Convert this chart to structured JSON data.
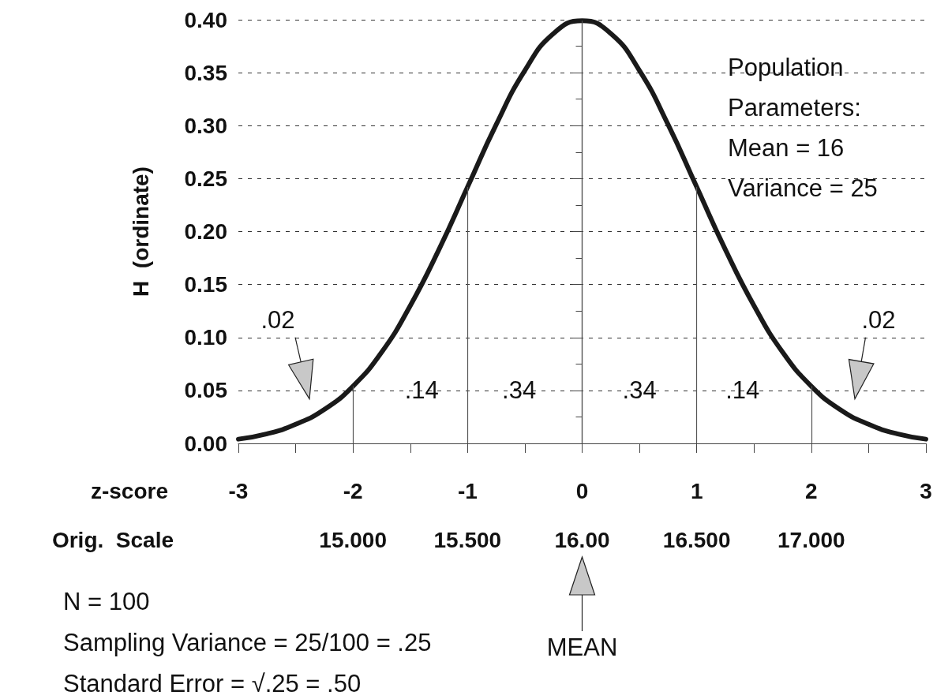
{
  "chart_data": {
    "type": "line",
    "xlabel": "z-score",
    "ylabel": "H  (ordinate)",
    "x2label": "Orig.  Scale",
    "x": [
      -3,
      -2.75,
      -2.5,
      -2.25,
      -2,
      -1.75,
      -1.5,
      -1.25,
      -1,
      -0.75,
      -0.5,
      -0.25,
      0,
      0.25,
      0.5,
      0.75,
      1,
      1.25,
      1.5,
      1.75,
      2,
      2.25,
      2.5,
      2.75,
      3
    ],
    "series": [
      {
        "color": "#1a1a1a",
        "values": [
          0.004,
          0.009,
          0.018,
          0.032,
          0.054,
          0.086,
          0.13,
          0.183,
          0.242,
          0.301,
          0.352,
          0.387,
          0.399,
          0.387,
          0.352,
          0.301,
          0.242,
          0.183,
          0.13,
          0.086,
          0.054,
          0.032,
          0.018,
          0.009,
          0.004
        ]
      }
    ],
    "xlim": [
      -3,
      3
    ],
    "xticks": [
      -3,
      -2,
      -1,
      0,
      1,
      2,
      3
    ],
    "x2lim": [
      14.5,
      17.5
    ],
    "x2ticks": [
      {
        "value": 15,
        "label": "15.000"
      },
      {
        "value": 15.5,
        "label": "15.500"
      },
      {
        "value": 16,
        "label": "16.00"
      },
      {
        "value": 16.5,
        "label": "16.500"
      },
      {
        "value": 17,
        "label": "17.000"
      }
    ],
    "ylim": [
      0,
      0.4
    ],
    "yticks": [
      {
        "value": 0,
        "label": "0.00"
      },
      {
        "value": 0.05,
        "label": "0.05"
      },
      {
        "value": 0.1,
        "label": "0.10"
      },
      {
        "value": 0.15,
        "label": "0.15"
      },
      {
        "value": 0.2,
        "label": "0.20"
      },
      {
        "value": 0.25,
        "label": "0.25"
      },
      {
        "value": 0.3,
        "label": "0.30"
      },
      {
        "value": 0.35,
        "label": "0.35"
      },
      {
        "value": 0.4,
        "label": "0.40"
      }
    ],
    "grid": "y",
    "marker": "none",
    "line_style": "solid",
    "ref_lines": [
      {
        "axis": "x",
        "value": -2,
        "color": "#555555"
      },
      {
        "axis": "x",
        "value": -1,
        "color": "#555555"
      },
      {
        "axis": "x",
        "value": 0,
        "color": "#555555"
      },
      {
        "axis": "x",
        "value": 1,
        "color": "#555555"
      },
      {
        "axis": "x",
        "value": 2,
        "color": "#555555"
      }
    ],
    "annotations": [
      "Population\nParameters:\nMean = 16\nVariance = 25",
      ".02",
      ".14",
      ".34",
      ".34",
      ".14",
      ".02",
      "N = 100",
      "Sampling Variance = 25/100 = .25",
      "Standard Error = √.25 = .50",
      "MEAN"
    ]
  }
}
